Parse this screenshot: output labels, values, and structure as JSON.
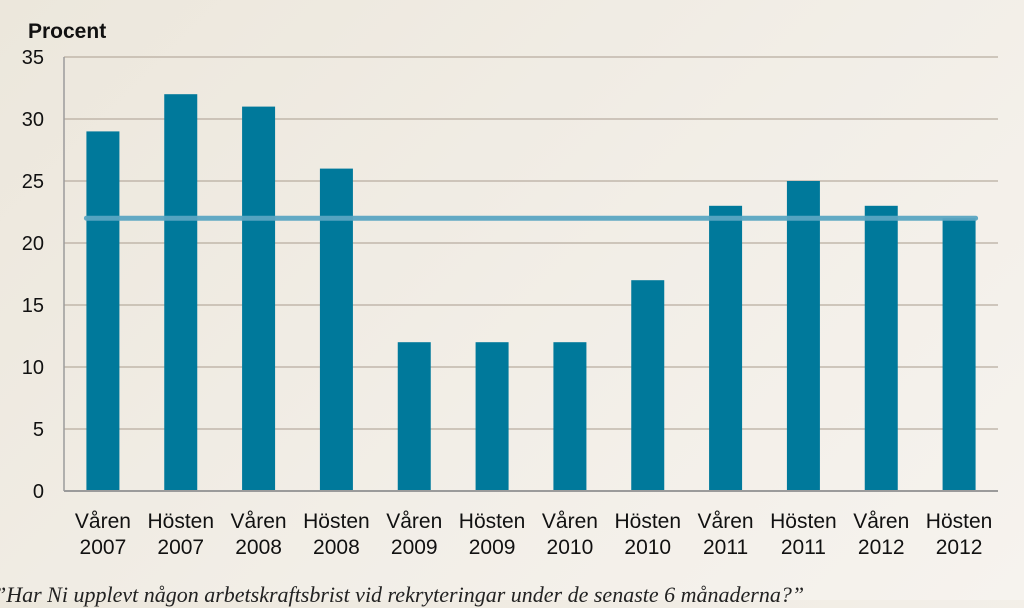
{
  "chart_data": {
    "type": "bar",
    "ylabel": "Procent",
    "ylim": [
      0,
      35
    ],
    "yticks": [
      0,
      5,
      10,
      15,
      20,
      25,
      30,
      35
    ],
    "grid": true,
    "categories": [
      [
        "Våren",
        "2007"
      ],
      [
        "Hösten",
        "2007"
      ],
      [
        "Våren",
        "2008"
      ],
      [
        "Hösten",
        "2008"
      ],
      [
        "Våren",
        "2009"
      ],
      [
        "Hösten",
        "2009"
      ],
      [
        "Våren",
        "2010"
      ],
      [
        "Hösten",
        "2010"
      ],
      [
        "Våren",
        "2011"
      ],
      [
        "Hösten",
        "2011"
      ],
      [
        "Våren",
        "2012"
      ],
      [
        "Hösten",
        "2012"
      ]
    ],
    "series": [
      {
        "type": "bar",
        "color": "#00799b",
        "values": [
          29,
          32,
          31,
          26,
          12,
          12,
          12,
          17,
          23,
          25,
          23,
          22
        ]
      },
      {
        "type": "line",
        "color": "#5aa5c2",
        "values": [
          22,
          22,
          22,
          22,
          22,
          22,
          22,
          22,
          22,
          22,
          22,
          22
        ]
      }
    ]
  },
  "caption": "”Har Ni upplevt någon arbetskraftsbrist vid rekryteringar under de senaste 6 månaderna?”"
}
